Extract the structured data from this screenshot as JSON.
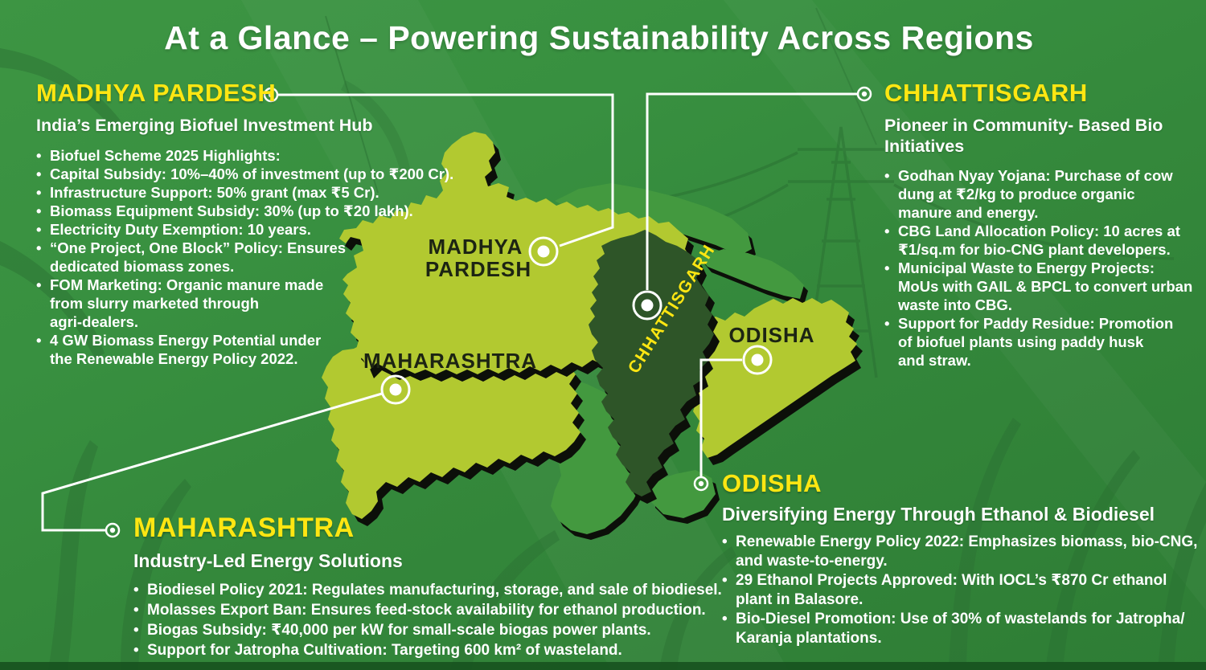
{
  "palette": {
    "background_green": "#35893b",
    "state_light_green": "#b2c930",
    "state_dark_green": "#2e5528",
    "state_mid_green": "#43993f",
    "heading_yellow": "#ffe612",
    "text_white": "#ffffff",
    "outline_black": "#0c0f09"
  },
  "header": {
    "title": "At a Glance – Powering Sustainability Across Regions"
  },
  "map": {
    "labels": {
      "mp": [
        "MADHYA",
        "PARDESH"
      ],
      "maharashtra": "MAHARASHTRA",
      "chhattisgarh": "CHHATTISGARH",
      "odisha": "ODISHA"
    }
  },
  "sections": [
    {
      "id": "madhya-pardesh",
      "heading": "MADHYA PARDESH",
      "subtitle_lines": [
        "India’s Emerging Biofuel Investment Hub"
      ],
      "bullets": [
        [
          "Biofuel Scheme 2025 Highlights:"
        ],
        [
          "Capital Subsidy: 10%–40% of investment (up to ₹200 Cr)."
        ],
        [
          "Infrastructure Support: 50% grant (max ₹5 Cr)."
        ],
        [
          "Biomass Equipment Subsidy: 30% (up to ₹20 lakh)."
        ],
        [
          "Electricity Duty Exemption: 10 years."
        ],
        [
          "“One Project, One Block” Policy: Ensures",
          "dedicated biomass zones."
        ],
        [
          "FOM Marketing: Organic manure made",
          "from slurry marketed through",
          "agri-dealers."
        ],
        [
          "4 GW Biomass Energy Potential under",
          "the Renewable Energy  Policy 2022."
        ]
      ]
    },
    {
      "id": "chhattisgarh",
      "heading": "CHHATTISGARH",
      "subtitle_lines": [
        "Pioneer in Community- Based Bio",
        "Initiatives"
      ],
      "bullets": [
        [
          "Godhan Nyay Yojana: Purchase of cow",
          "dung at ₹2/kg to produce organic",
          "manure and energy."
        ],
        [
          "CBG Land Allocation Policy: 10 acres at",
          "₹1/sq.m for bio-CNG plant developers."
        ],
        [
          "Municipal Waste to Energy Projects:",
          "MoUs with GAIL & BPCL to convert urban",
          "waste into CBG."
        ],
        [
          "Support for Paddy Residue: Promotion",
          "of biofuel plants using paddy husk",
          "and straw."
        ]
      ]
    },
    {
      "id": "maharashtra",
      "heading": "MAHARASHTRA",
      "subtitle_lines": [
        "Industry-Led Energy Solutions"
      ],
      "bullets": [
        [
          "Biodiesel Policy 2021: Regulates manufacturing, storage, and sale of biodiesel."
        ],
        [
          "Molasses Export Ban: Ensures feed-stock availability for ethanol production."
        ],
        [
          "Biogas Subsidy: ₹40,000 per kW for small-scale biogas power plants."
        ],
        [
          "Support for Jatropha Cultivation: Targeting 600 km² of wasteland."
        ]
      ]
    },
    {
      "id": "odisha",
      "heading": "ODISHA",
      "subtitle_lines": [
        "Diversifying Energy Through Ethanol & Biodiesel"
      ],
      "bullets": [
        [
          "Renewable Energy Policy 2022: Emphasizes biomass, bio-CNG,",
          "and waste-to-energy."
        ],
        [
          "29 Ethanol Projects Approved: With IOCL’s ₹870 Cr ethanol",
          "plant in Balasore."
        ],
        [
          "Bio-Diesel Promotion: Use of 30% of wastelands for Jatropha/",
          "Karanja plantations."
        ]
      ]
    }
  ]
}
